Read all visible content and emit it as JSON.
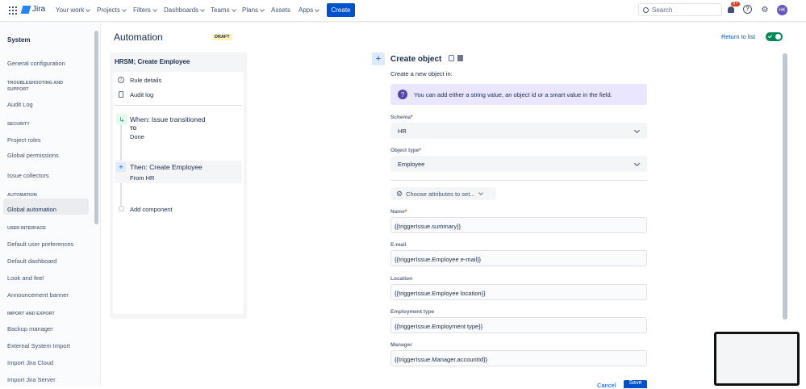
{
  "topnav": {
    "product": "Jira",
    "items": [
      "Your work",
      "Projects",
      "Filters",
      "Dashboards",
      "Teams",
      "Plans",
      "Assets",
      "Apps"
    ],
    "dropdowns": [
      true,
      true,
      true,
      true,
      true,
      true,
      false,
      true
    ],
    "create": "Create",
    "search_placeholder": "Search",
    "notif_count": "9+",
    "avatar": "HK"
  },
  "sidebar": {
    "title": "System",
    "items": [
      {
        "t": "s",
        "label": "General configuration"
      },
      {
        "t": "h",
        "label": "TROUBLESHOOTING AND SUPPORT"
      },
      {
        "t": "s",
        "label": "Audit Log"
      },
      {
        "t": "h",
        "label": "SECURITY"
      },
      {
        "t": "s",
        "label": "Project roles"
      },
      {
        "t": "s",
        "label": "Global permissions"
      },
      {
        "t": "s",
        "label": "Issue collectors"
      },
      {
        "t": "h",
        "label": "AUTOMATION"
      },
      {
        "t": "s",
        "label": "Global automation",
        "selected": true
      },
      {
        "t": "h",
        "label": "USER INTERFACE"
      },
      {
        "t": "s",
        "label": "Default user preferences"
      },
      {
        "t": "s",
        "label": "Default dashboard"
      },
      {
        "t": "s",
        "label": "Look and feel"
      },
      {
        "t": "s",
        "label": "Announcement banner"
      },
      {
        "t": "h",
        "label": "IMPORT AND EXPORT"
      },
      {
        "t": "s",
        "label": "Backup manager"
      },
      {
        "t": "s",
        "label": "External System Import"
      },
      {
        "t": "s",
        "label": "Import Jira Cloud"
      },
      {
        "t": "s",
        "label": "Import Jira Server"
      }
    ]
  },
  "page": {
    "title": "Automation",
    "status": "DRAFT",
    "return": "Return to list",
    "enabled": true
  },
  "rule": {
    "name": "HRSM; Create Employee",
    "rule_details": "Rule details",
    "audit_log": "Audit log",
    "trigger": "When: Issue transitioned",
    "trigger_to_label": "TO",
    "trigger_to": "Done",
    "action": "Then: Create Employee",
    "action_sub": "From HR",
    "add": "Add component"
  },
  "form": {
    "title": "Create object",
    "subtitle": "Create a new object in:",
    "info": "You can add either a string value, an object id or a smart value in the field.",
    "schema_label": "Schema",
    "schema": "HR",
    "type_label": "Object type",
    "type": "Employee",
    "choose": "Choose attributes to set...",
    "fields": [
      {
        "label": "Name",
        "value": "{{triggerIssue.summary}}",
        "required": true
      },
      {
        "label": "E-mail",
        "value": "{{triggerIssue.Employee e-mail}}"
      },
      {
        "label": "Location",
        "value": "{{triggerIssue.Employee location}}"
      },
      {
        "label": "Employment type",
        "value": "{{triggerIssue.Employment type}}"
      },
      {
        "label": "Manager",
        "value": "{{triggerIssue.Manager.accountId}}"
      }
    ],
    "cancel": "Cancel",
    "save": "Save"
  },
  "colors": {
    "accent": "#0052cc",
    "toggle": "#00875a",
    "info_bg": "#eae6ff"
  }
}
